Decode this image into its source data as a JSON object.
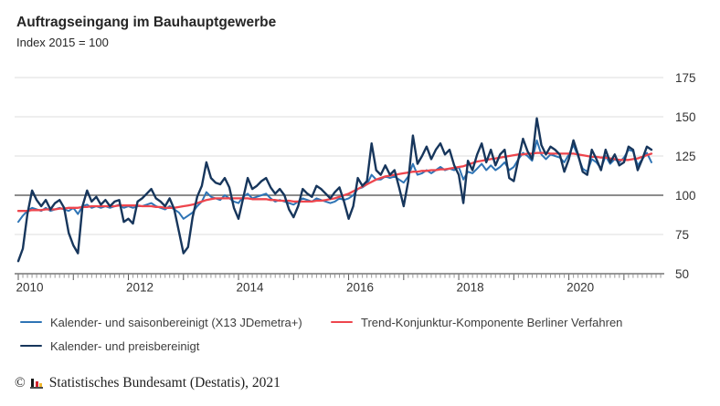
{
  "header": {
    "title": "Auftragseingang im Bauhauptgewerbe",
    "subtitle": "Index 2015 = 100"
  },
  "chart_data": {
    "type": "line",
    "title": "Auftragseingang im Bauhauptgewerbe",
    "subtitle": "Index 2015 = 100",
    "x_unit": "month",
    "x_start": "2010-01",
    "x_end": "2021-07",
    "x_tick_labels": [
      "2010",
      "2012",
      "2014",
      "2016",
      "2018",
      "2020"
    ],
    "y_ticks": [
      50,
      75,
      100,
      125,
      150,
      175
    ],
    "ylim": [
      50,
      175
    ],
    "baseline_value": 100,
    "grid": "horizontal",
    "legend_position": "bottom",
    "axis_color": "#595959",
    "grid_color": "#dcdcdc",
    "baseline_color": "#666666",
    "series": [
      {
        "name": "Kalender- und saisonbereinigt (X13 JDemetra+)",
        "color": "#2e74b5",
        "values": [
          83,
          87,
          90,
          92,
          91,
          90,
          92,
          90,
          91,
          92,
          91,
          90,
          92,
          88,
          93,
          94,
          92,
          93,
          92,
          93,
          92,
          93,
          94,
          92,
          93,
          92,
          93,
          93,
          94,
          95,
          93,
          92,
          91,
          93,
          91,
          89,
          85,
          87,
          89,
          93,
          96,
          102,
          99,
          98,
          97,
          100,
          98,
          96,
          95,
          99,
          101,
          98,
          99,
          100,
          101,
          98,
          96,
          97,
          96,
          95,
          94,
          96,
          98,
          97,
          96,
          98,
          97,
          96,
          95,
          96,
          98,
          97,
          98,
          100,
          104,
          105,
          107,
          113,
          110,
          110,
          112,
          111,
          112,
          110,
          108,
          112,
          120,
          113,
          114,
          116,
          114,
          116,
          118,
          116,
          117,
          116,
          118,
          110,
          115,
          114,
          117,
          120,
          116,
          119,
          116,
          118,
          121,
          116,
          118,
          123,
          127,
          125,
          122,
          135,
          126,
          123,
          126,
          125,
          124,
          121,
          126,
          132,
          125,
          117,
          115,
          123,
          121,
          117,
          125,
          120,
          123,
          121,
          124,
          129,
          128,
          119,
          123,
          127,
          121
        ]
      },
      {
        "name": "Trend-Konjunktur-Komponente Berliner Verfahren",
        "color": "#ee454d",
        "values": [
          90,
          90,
          90,
          90.5,
          90.5,
          90.5,
          91,
          91,
          91,
          91.5,
          91.5,
          92,
          92,
          92,
          92.5,
          92.5,
          93,
          93,
          93,
          93,
          93,
          93,
          93.5,
          93.5,
          93.5,
          93.5,
          93.5,
          93,
          93,
          93,
          92.5,
          92.5,
          92,
          92,
          92,
          92.5,
          93,
          93.5,
          94,
          95,
          96,
          97,
          97.5,
          98,
          98,
          98,
          98,
          98,
          98,
          98,
          98,
          97.5,
          97.5,
          97.5,
          97.5,
          97,
          97,
          96.5,
          96.5,
          96.5,
          96,
          96,
          96,
          96,
          96,
          96.5,
          96.5,
          97,
          97.5,
          98,
          99,
          100,
          101,
          102.5,
          104,
          105.5,
          107,
          108.5,
          110,
          111,
          112,
          112.5,
          113,
          113.5,
          114,
          114.5,
          115,
          115,
          115.5,
          115.5,
          116,
          116,
          116.5,
          116.5,
          117,
          117.5,
          118,
          118.5,
          119.5,
          120.5,
          121.5,
          122,
          122.5,
          123,
          123.5,
          124,
          124.5,
          125,
          125.5,
          126,
          126,
          126.5,
          126.5,
          127,
          127,
          127,
          126.5,
          126.5,
          126.5,
          126.5,
          126.5,
          126.5,
          126,
          125.5,
          125,
          124.5,
          124.5,
          124,
          124,
          123.5,
          123,
          122.5,
          122.5,
          122.5,
          123,
          123.5,
          124.5,
          125.5,
          126.5
        ]
      },
      {
        "name": "Kalender- und preisbereinigt",
        "color": "#17365c",
        "values": [
          58,
          66,
          88,
          103,
          97,
          93,
          97,
          91,
          95,
          97,
          92,
          76,
          68,
          63,
          93,
          103,
          96,
          99,
          94,
          97,
          93,
          96,
          97,
          83,
          85,
          82,
          96,
          98,
          101,
          104,
          98,
          96,
          93,
          98,
          91,
          77,
          63,
          67,
          86,
          99,
          106,
          121,
          111,
          108,
          107,
          111,
          105,
          92,
          85,
          98,
          111,
          104,
          106,
          109,
          111,
          105,
          101,
          104,
          100,
          91,
          86,
          93,
          104,
          101,
          99,
          106,
          104,
          101,
          98,
          102,
          105,
          96,
          85,
          93,
          111,
          106,
          109,
          133,
          116,
          113,
          119,
          113,
          116,
          105,
          93,
          109,
          138,
          120,
          125,
          131,
          123,
          129,
          133,
          126,
          129,
          119,
          113,
          95,
          122,
          116,
          126,
          133,
          121,
          129,
          119,
          126,
          129,
          111,
          109,
          123,
          136,
          128,
          123,
          149,
          132,
          126,
          131,
          129,
          126,
          115,
          123,
          135,
          126,
          115,
          113,
          129,
          123,
          116,
          129,
          121,
          126,
          119,
          121,
          131,
          129,
          116,
          123,
          131,
          129
        ]
      }
    ]
  },
  "footer": {
    "copyright": "©",
    "logo": "destatis-bars-icon",
    "text": "Statistisches Bundesamt (Destatis), 2021"
  }
}
